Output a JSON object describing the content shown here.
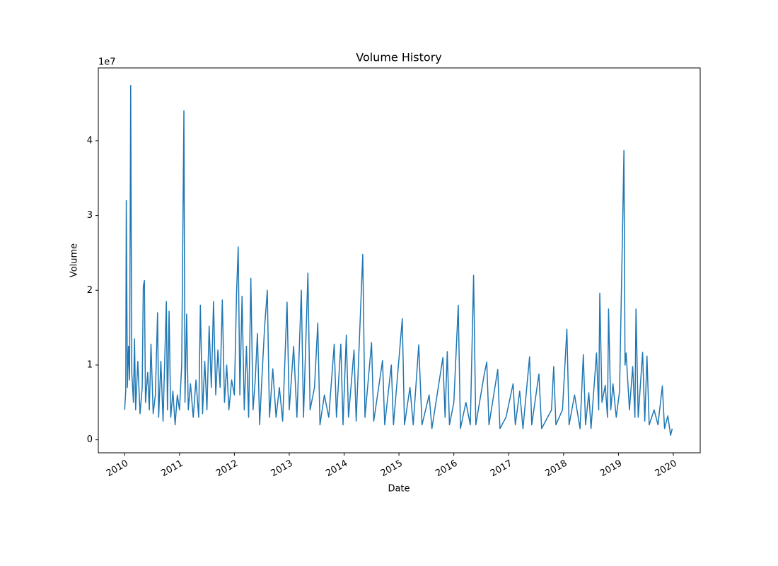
{
  "chart_data": {
    "type": "line",
    "title": "Volume History",
    "x_label": "Date",
    "y_label": "Volume",
    "y_offset_label": "1e7",
    "x": [
      2010.0,
      2010.02,
      2010.03,
      2010.05,
      2010.07,
      2010.09,
      2010.11,
      2010.13,
      2010.16,
      2010.18,
      2010.2,
      2010.24,
      2010.28,
      2010.32,
      2010.34,
      2010.36,
      2010.38,
      2010.42,
      2010.45,
      2010.48,
      2010.52,
      2010.56,
      2010.6,
      2010.62,
      2010.66,
      2010.7,
      2010.76,
      2010.78,
      2010.81,
      2010.84,
      2010.88,
      2010.92,
      2010.96,
      2011.0,
      2011.04,
      2011.08,
      2011.1,
      2011.13,
      2011.16,
      2011.2,
      2011.25,
      2011.3,
      2011.35,
      2011.38,
      2011.42,
      2011.46,
      2011.5,
      2011.54,
      2011.58,
      2011.62,
      2011.66,
      2011.7,
      2011.74,
      2011.78,
      2011.82,
      2011.86,
      2011.9,
      2011.95,
      2012.0,
      2012.04,
      2012.07,
      2012.1,
      2012.14,
      2012.18,
      2012.22,
      2012.26,
      2012.3,
      2012.34,
      2012.38,
      2012.42,
      2012.46,
      2012.5,
      2012.55,
      2012.6,
      2012.64,
      2012.7,
      2012.76,
      2012.82,
      2012.88,
      2012.96,
      2013.0,
      2013.08,
      2013.14,
      2013.22,
      2013.26,
      2013.34,
      2013.38,
      2013.46,
      2013.52,
      2013.56,
      2013.64,
      2013.72,
      2013.82,
      2013.86,
      2013.94,
      2013.98,
      2014.04,
      2014.08,
      2014.18,
      2014.22,
      2014.34,
      2014.38,
      2014.5,
      2014.54,
      2014.7,
      2014.74,
      2014.86,
      2014.9,
      2015.06,
      2015.1,
      2015.2,
      2015.26,
      2015.36,
      2015.42,
      2015.55,
      2015.6,
      2015.8,
      2015.84,
      2015.88,
      2015.92,
      2016.0,
      2016.08,
      2016.12,
      2016.22,
      2016.3,
      2016.36,
      2016.4,
      2016.55,
      2016.6,
      2016.64,
      2016.8,
      2016.84,
      2016.95,
      2017.08,
      2017.12,
      2017.2,
      2017.26,
      2017.38,
      2017.42,
      2017.55,
      2017.6,
      2017.78,
      2017.82,
      2017.86,
      2017.98,
      2018.06,
      2018.1,
      2018.2,
      2018.3,
      2018.36,
      2018.4,
      2018.46,
      2018.5,
      2018.6,
      2018.64,
      2018.66,
      2018.7,
      2018.76,
      2018.8,
      2018.82,
      2018.86,
      2018.9,
      2018.96,
      2019.02,
      2019.08,
      2019.1,
      2019.12,
      2019.14,
      2019.2,
      2019.26,
      2019.3,
      2019.32,
      2019.36,
      2019.44,
      2019.48,
      2019.52,
      2019.56,
      2019.65,
      2019.72,
      2019.8,
      2019.84,
      2019.9,
      2019.95,
      2019.98
    ],
    "series": [
      {
        "name": "Volume",
        "color": "#1f77b4",
        "values": [
          4000000,
          6500000,
          32000000,
          7000000,
          12500000,
          8000000,
          47400000,
          9000000,
          5000000,
          13500000,
          4000000,
          10500000,
          3500000,
          7000000,
          20500000,
          21300000,
          5000000,
          9000000,
          4000000,
          12800000,
          3500000,
          6000000,
          17000000,
          3000000,
          10500000,
          2500000,
          18500000,
          4000000,
          17200000,
          3000000,
          6500000,
          2000000,
          6000000,
          4000000,
          10000000,
          44000000,
          5000000,
          16800000,
          4000000,
          7500000,
          3000000,
          8000000,
          3000000,
          18000000,
          3500000,
          10500000,
          4000000,
          15200000,
          7000000,
          18500000,
          6000000,
          12000000,
          7000000,
          18700000,
          5000000,
          10000000,
          4000000,
          8000000,
          6000000,
          19800000,
          25800000,
          6000000,
          19200000,
          4000000,
          12500000,
          3000000,
          21600000,
          4000000,
          8000000,
          14200000,
          2000000,
          8000000,
          15000000,
          20000000,
          3000000,
          9500000,
          3000000,
          7000000,
          2500000,
          18400000,
          4000000,
          12500000,
          3000000,
          20000000,
          3000000,
          22300000,
          4000000,
          7000000,
          15600000,
          2000000,
          6000000,
          3000000,
          12800000,
          3000000,
          12800000,
          2000000,
          14000000,
          3000000,
          12000000,
          2500000,
          24800000,
          3000000,
          13000000,
          2500000,
          10600000,
          2000000,
          10000000,
          2000000,
          16200000,
          2000000,
          7000000,
          2000000,
          12700000,
          2000000,
          6000000,
          1500000,
          11000000,
          3000000,
          11800000,
          2000000,
          5000000,
          18000000,
          1500000,
          5000000,
          2000000,
          22000000,
          2000000,
          8600000,
          10400000,
          2000000,
          9400000,
          1500000,
          3000000,
          7500000,
          2000000,
          6500000,
          1500000,
          11100000,
          2000000,
          8800000,
          1500000,
          4000000,
          9800000,
          2000000,
          4000000,
          14800000,
          2000000,
          6000000,
          1500000,
          11400000,
          2000000,
          6300000,
          1500000,
          11600000,
          4000000,
          19600000,
          5000000,
          7300000,
          3000000,
          17500000,
          4000000,
          7500000,
          3000000,
          6500000,
          30200000,
          38700000,
          10000000,
          11600000,
          4000000,
          9800000,
          3000000,
          17500000,
          3000000,
          11700000,
          2500000,
          11200000,
          2000000,
          4000000,
          2000000,
          7200000,
          1500000,
          3200000,
          600000,
          1500000
        ]
      }
    ],
    "xlim": [
      2009.52,
      2020.49
    ],
    "xticks": [
      2010,
      2011,
      2012,
      2013,
      2014,
      2015,
      2016,
      2017,
      2018,
      2019,
      2020
    ],
    "ylim": [
      -1740000,
      49740000
    ],
    "yticks": [
      {
        "value": 0,
        "label": "0"
      },
      {
        "value": 10000000,
        "label": "1"
      },
      {
        "value": 20000000,
        "label": "2"
      },
      {
        "value": 30000000,
        "label": "3"
      },
      {
        "value": 40000000,
        "label": "4"
      }
    ],
    "grid": false
  }
}
